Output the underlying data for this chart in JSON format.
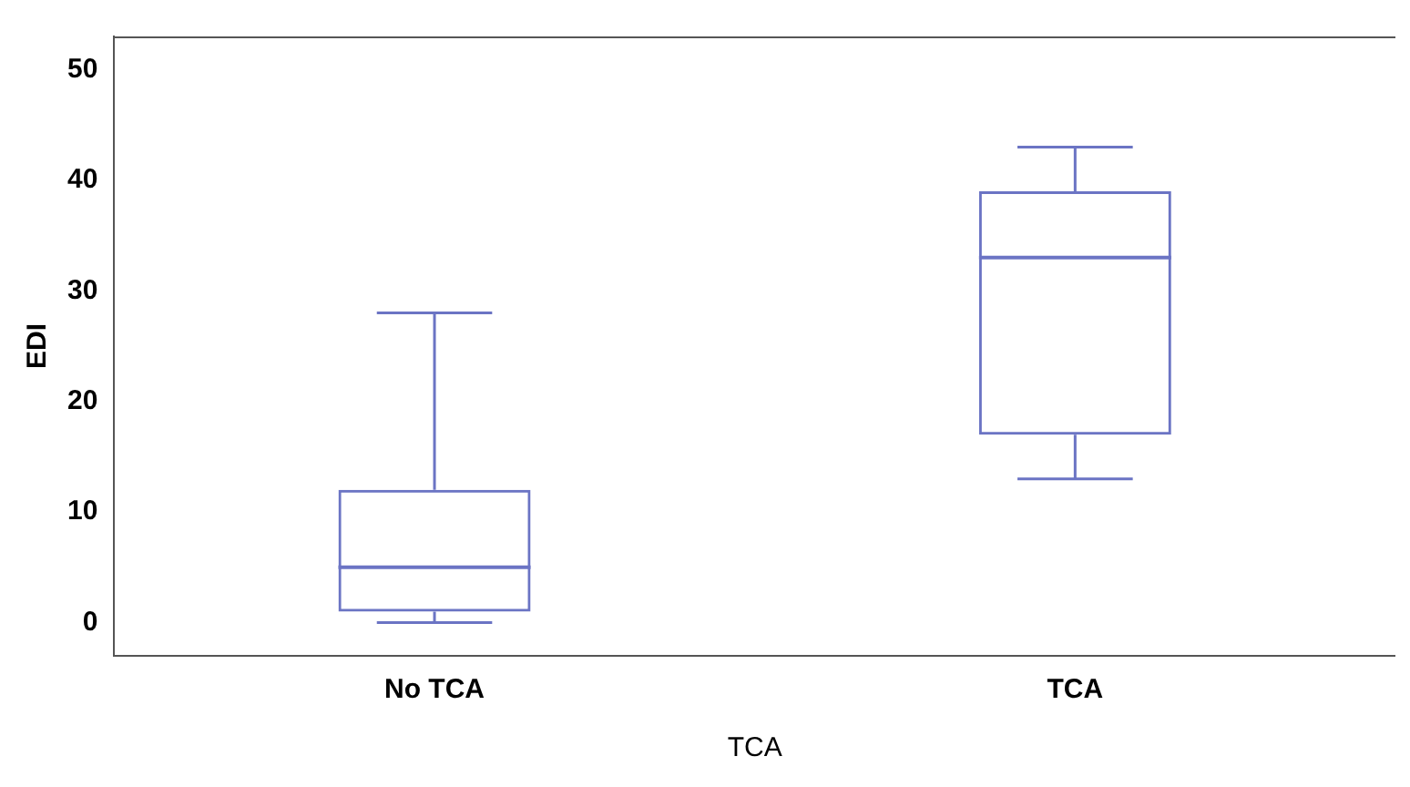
{
  "chart_data": {
    "type": "box",
    "xlabel": "TCA",
    "ylabel": "EDI",
    "categories": [
      "No TCA",
      "TCA"
    ],
    "color": "#6b74c4",
    "ylim": [
      -3,
      53
    ],
    "yticks": [
      0,
      10,
      20,
      30,
      40,
      50
    ],
    "grid": false,
    "legend": false,
    "boxes": [
      {
        "low": 0,
        "q1": 1,
        "median": 5,
        "q3": 12,
        "high": 28
      },
      {
        "low": 13,
        "q1": 17,
        "median": 33,
        "q3": 39,
        "high": 43
      }
    ]
  }
}
